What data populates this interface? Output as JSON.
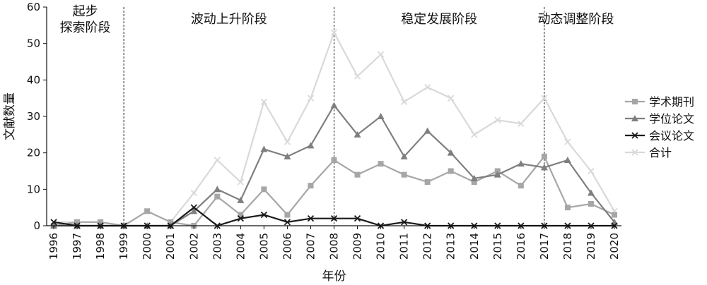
{
  "chart_data": {
    "type": "line",
    "xlabel": "年份",
    "ylabel": "文献数量",
    "ylim": [
      0,
      60
    ],
    "yticks": [
      "0",
      "10",
      "20",
      "30",
      "40",
      "50",
      "60"
    ],
    "categories": [
      "1996",
      "1997",
      "1998",
      "1999",
      "2000",
      "2001",
      "2002",
      "2003",
      "2004",
      "2005",
      "2006",
      "2007",
      "2008",
      "2009",
      "2010",
      "2011",
      "2012",
      "2013",
      "2014",
      "2015",
      "2016",
      "2017",
      "2018",
      "2019",
      "2020"
    ],
    "phases": [
      {
        "label_lines": [
          "起步",
          "探索阶段"
        ],
        "start": "1996",
        "end": "1999"
      },
      {
        "label_lines": [
          "波动上升阶段"
        ],
        "start": "1999",
        "end": "2008"
      },
      {
        "label_lines": [
          "稳定发展阶段"
        ],
        "start": "2008",
        "end": "2017"
      },
      {
        "label_lines": [
          "动态调整阶段"
        ],
        "start": "2017",
        "end": "2020"
      }
    ],
    "series": [
      {
        "name": "学术期刊",
        "color": "#a6a6a6",
        "marker": "square",
        "values": [
          0,
          1,
          1,
          0,
          4,
          1,
          0,
          8,
          3,
          10,
          3,
          11,
          18,
          14,
          17,
          14,
          12,
          15,
          12,
          15,
          11,
          19,
          5,
          6,
          3
        ]
      },
      {
        "name": "学位论文",
        "color": "#7f7f7f",
        "marker": "triangle",
        "values": [
          0,
          0,
          0,
          0,
          0,
          0,
          4,
          10,
          7,
          21,
          19,
          22,
          33,
          25,
          30,
          19,
          26,
          20,
          13,
          14,
          17,
          16,
          18,
          9,
          1
        ]
      },
      {
        "name": "会议论文",
        "color": "#1a1a1a",
        "marker": "x",
        "values": [
          1,
          0,
          0,
          0,
          0,
          0,
          5,
          0,
          2,
          3,
          1,
          2,
          2,
          2,
          0,
          1,
          0,
          0,
          0,
          0,
          0,
          0,
          0,
          0,
          0
        ]
      },
      {
        "name": "合计",
        "color": "#d9d9d9",
        "marker": "x",
        "values": [
          1,
          1,
          1,
          0,
          4,
          1,
          9,
          18,
          12,
          34,
          23,
          35,
          53,
          41,
          47,
          34,
          38,
          35,
          25,
          29,
          28,
          35,
          23,
          15,
          4
        ]
      }
    ],
    "legend": "right"
  }
}
